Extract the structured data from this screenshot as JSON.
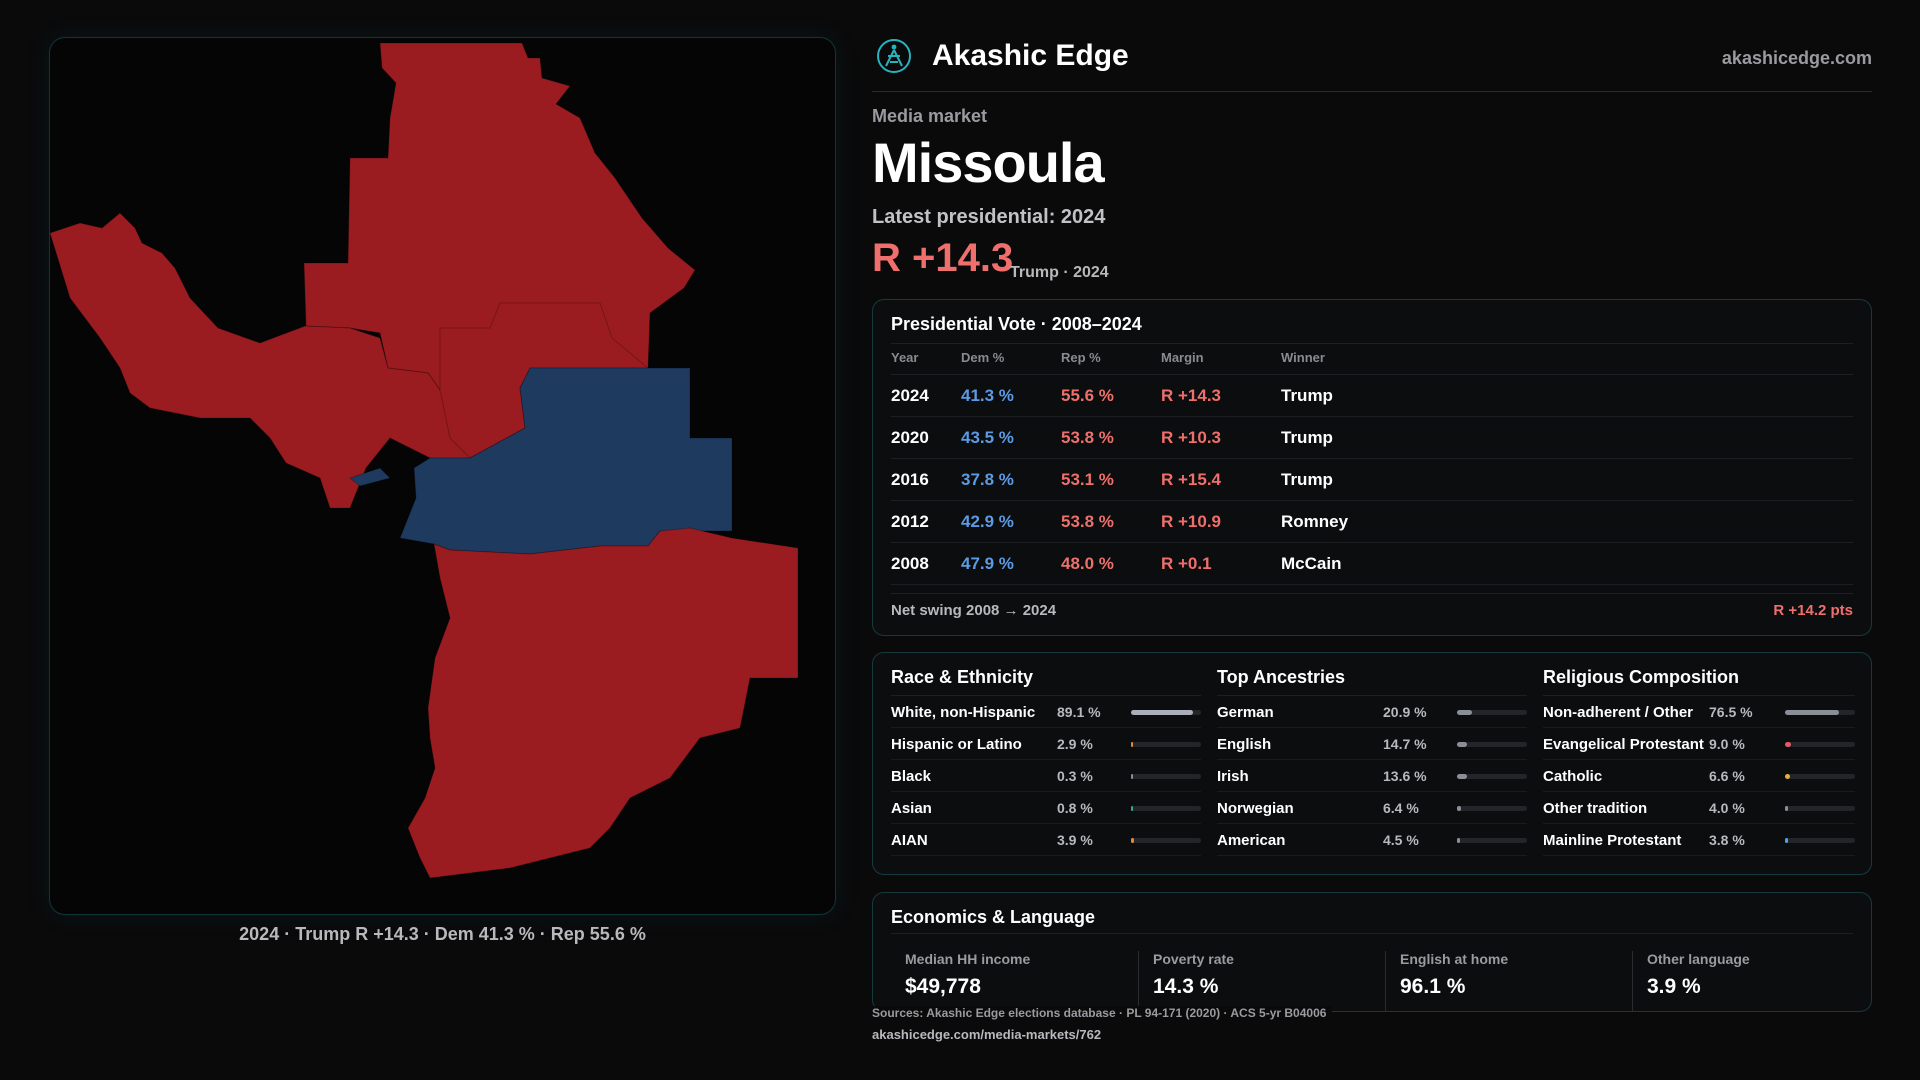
{
  "brand": {
    "name": "Akashic Edge",
    "site": "akashicedge.com"
  },
  "market": {
    "eyebrow": "Media market",
    "name": "Missoula",
    "latest_label": "Latest presidential: 2024",
    "margin": "R +14.3",
    "margin_sub": "Trump · 2024"
  },
  "map": {
    "caption": "2024 · Trump R +14.3 · Dem 41.3 % · Rep 55.6 %",
    "colors": {
      "rep": "#9b1c20",
      "dem": "#1e3a5f"
    }
  },
  "vote": {
    "title": "Presidential Vote · 2008–2024",
    "headers": {
      "year": "Year",
      "dem": "Dem %",
      "rep": "Rep %",
      "margin": "Margin",
      "winner": "Winner"
    },
    "rows": [
      {
        "year": "2024",
        "dem": "41.3 %",
        "rep": "55.6 %",
        "margin": "R +14.3",
        "winner": "Trump"
      },
      {
        "year": "2020",
        "dem": "43.5 %",
        "rep": "53.8 %",
        "margin": "R +10.3",
        "winner": "Trump"
      },
      {
        "year": "2016",
        "dem": "37.8 %",
        "rep": "53.1 %",
        "margin": "R +15.4",
        "winner": "Trump"
      },
      {
        "year": "2012",
        "dem": "42.9 %",
        "rep": "53.8 %",
        "margin": "R +10.9",
        "winner": "Romney"
      },
      {
        "year": "2008",
        "dem": "47.9 %",
        "rep": "48.0 %",
        "margin": "R +0.1",
        "winner": "McCain"
      }
    ],
    "swing_label": "Net swing 2008 → 2024",
    "swing_value": "R +14.2 pts"
  },
  "race": {
    "title": "Race & Ethnicity",
    "items": [
      {
        "label": "White, non-Hispanic",
        "pct": "89.1 %",
        "value": 89.1,
        "color": "#a9aeb8"
      },
      {
        "label": "Hispanic or Latino",
        "pct": "2.9 %",
        "value": 2.9,
        "color": "#e08a3a"
      },
      {
        "label": "Black",
        "pct": "0.3 %",
        "value": 0.3,
        "color": "#8a8e96"
      },
      {
        "label": "Asian",
        "pct": "0.8 %",
        "value": 0.8,
        "color": "#3aa88a"
      },
      {
        "label": "AIAN",
        "pct": "3.9 %",
        "value": 3.9,
        "color": "#e08a3a"
      }
    ]
  },
  "ancestry": {
    "title": "Top Ancestries",
    "items": [
      {
        "label": "German",
        "pct": "20.9 %",
        "value": 20.9,
        "color": "#8a8e96"
      },
      {
        "label": "English",
        "pct": "14.7 %",
        "value": 14.7,
        "color": "#8a8e96"
      },
      {
        "label": "Irish",
        "pct": "13.6 %",
        "value": 13.6,
        "color": "#8a8e96"
      },
      {
        "label": "Norwegian",
        "pct": "6.4 %",
        "value": 6.4,
        "color": "#8a8e96"
      },
      {
        "label": "American",
        "pct": "4.5 %",
        "value": 4.5,
        "color": "#8a8e96"
      }
    ]
  },
  "religion": {
    "title": "Religious Composition",
    "items": [
      {
        "label": "Non-adherent / Other",
        "pct": "76.5 %",
        "value": 76.5,
        "color": "#8a8e96"
      },
      {
        "label": "Evangelical Protestant",
        "pct": "9.0 %",
        "value": 9.0,
        "color": "#e05a68"
      },
      {
        "label": "Catholic",
        "pct": "6.6 %",
        "value": 6.6,
        "color": "#e0b23a"
      },
      {
        "label": "Other tradition",
        "pct": "4.0 %",
        "value": 4.0,
        "color": "#8a8e96"
      },
      {
        "label": "Mainline Protestant",
        "pct": "3.8 %",
        "value": 3.8,
        "color": "#5b9be6"
      }
    ]
  },
  "econ": {
    "title": "Economics & Language",
    "stats": [
      {
        "label": "Median HH income",
        "value": "$49,778"
      },
      {
        "label": "Poverty rate",
        "value": "14.3 %"
      },
      {
        "label": "English at home",
        "value": "96.1 %"
      },
      {
        "label": "Other language",
        "value": "3.9 %"
      }
    ]
  },
  "footer": {
    "sources": "Sources: Akashic Edge elections database · PL 94-171 (2020) · ACS 5-yr B04006",
    "url": "akashicedge.com/media-markets/762"
  }
}
